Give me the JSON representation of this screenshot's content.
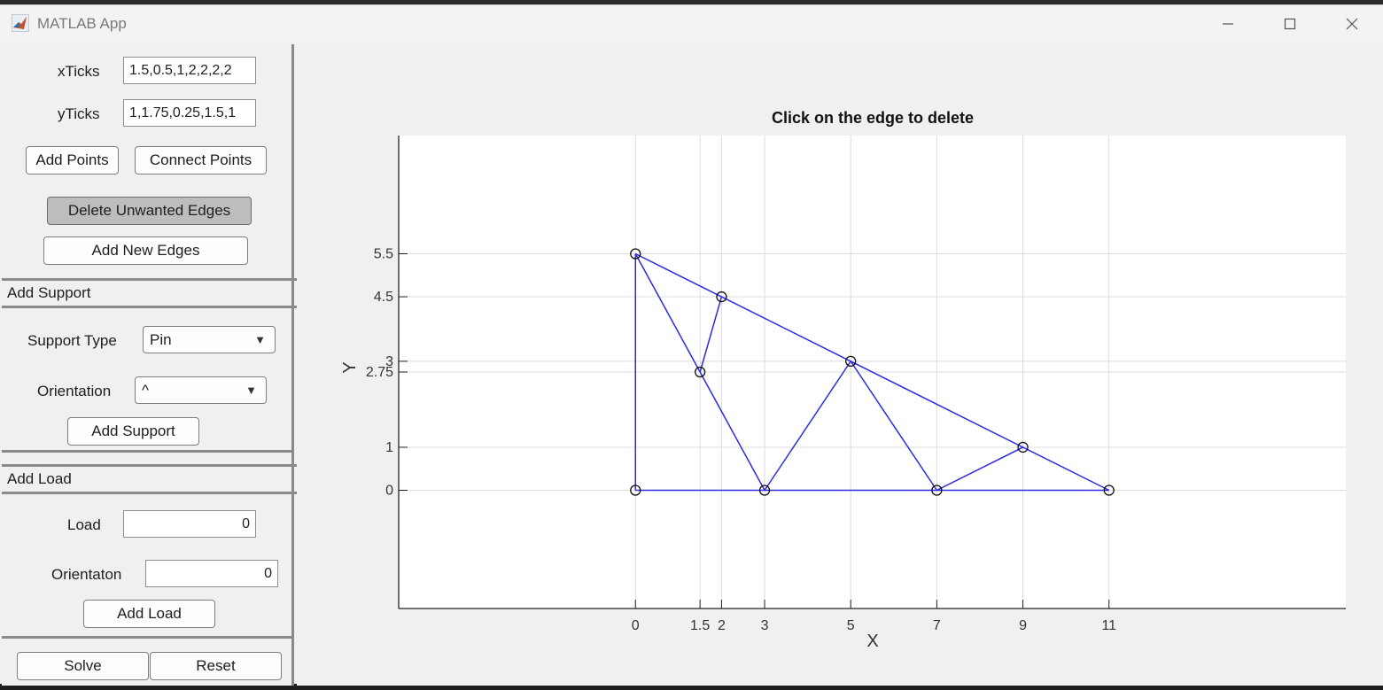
{
  "window": {
    "title": "MATLAB App"
  },
  "controls": {
    "xticks_label": "xTicks",
    "xticks_value": "1.5,0.5,1,2,2,2,2",
    "yticks_label": "yTicks",
    "yticks_value": "1,1.75,0.25,1.5,1",
    "add_points": "Add Points",
    "connect_points": "Connect Points",
    "delete_edges": "Delete Unwanted Edges",
    "add_edges": "Add New Edges"
  },
  "support": {
    "section_title": "Add Support",
    "type_label": "Support Type",
    "type_value": "Pin",
    "orientation_label": "Orientation",
    "orientation_value": "^",
    "add_button": "Add Support"
  },
  "load": {
    "section_title": "Add Load",
    "load_label": "Load",
    "load_value": "0",
    "orientation_label": "Orientaton",
    "orientation_value": "0",
    "add_button": "Add Load"
  },
  "actions": {
    "solve": "Solve",
    "reset": "Reset"
  },
  "chart_data": {
    "type": "scatter",
    "title": "Click on the edge to delete",
    "xlabel": "X",
    "ylabel": "Y",
    "xlim": [
      -5.5,
      16.5
    ],
    "ylim": [
      -2.75,
      8.25
    ],
    "xticks": [
      0,
      1.5,
      2,
      3,
      5,
      7,
      9,
      11
    ],
    "xtick_labels": [
      "0",
      "1.5",
      "2",
      "3",
      "5",
      "7",
      "9",
      "11"
    ],
    "yticks": [
      0,
      1,
      2.75,
      3,
      4.5,
      5.5
    ],
    "ytick_labels": [
      "0",
      "1",
      "2.75",
      "3",
      "4.5",
      "5.5"
    ],
    "grid": true,
    "line_color": "#2b2be0",
    "marker_color": "#111111",
    "nodes": [
      {
        "x": 0,
        "y": 0
      },
      {
        "x": 0,
        "y": 5.5
      },
      {
        "x": 2,
        "y": 4.5
      },
      {
        "x": 1.5,
        "y": 2.75
      },
      {
        "x": 3,
        "y": 0
      },
      {
        "x": 5,
        "y": 3
      },
      {
        "x": 7,
        "y": 0
      },
      {
        "x": 9,
        "y": 1
      },
      {
        "x": 11,
        "y": 0
      }
    ],
    "edges": [
      [
        0,
        1
      ],
      [
        1,
        8
      ],
      [
        0,
        8
      ],
      [
        1,
        3
      ],
      [
        3,
        4
      ],
      [
        2,
        3
      ],
      [
        4,
        5
      ],
      [
        5,
        6
      ],
      [
        6,
        7
      ]
    ]
  }
}
